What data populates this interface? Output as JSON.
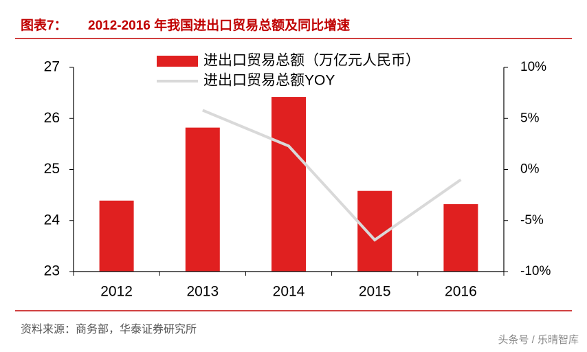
{
  "chart_data": {
    "type": "bar-line",
    "figure_label": "图表7：",
    "title": "2012-2016 年我国进出口贸易总额及同比增速",
    "categories": [
      "2012",
      "2013",
      "2014",
      "2015",
      "2016"
    ],
    "series": [
      {
        "name": "进出口贸易总额（万亿元人民币）",
        "type": "bar",
        "color": "#e02020",
        "values": [
          24.39,
          25.82,
          26.42,
          24.58,
          24.32
        ]
      },
      {
        "name": "进出口贸易总额YOY",
        "type": "line",
        "axis": "y2",
        "color": "#d9d9d9",
        "values": [
          null,
          5.8,
          2.3,
          -6.9,
          -1.0
        ]
      }
    ],
    "ylim": [
      23,
      27
    ],
    "yticks": [
      23,
      24,
      25,
      26,
      27
    ],
    "y2lim": [
      -10,
      10
    ],
    "y2ticks": [
      {
        "value": -10,
        "label": "-10%"
      },
      {
        "value": -5,
        "label": "-5%"
      },
      {
        "value": 0,
        "label": "0%"
      },
      {
        "value": 5,
        "label": "5%"
      },
      {
        "value": 10,
        "label": "10%"
      }
    ],
    "grid": false,
    "source": "资料来源：商务部，华泰证券研究所",
    "watermark": "头条号 / 乐晴智库"
  }
}
